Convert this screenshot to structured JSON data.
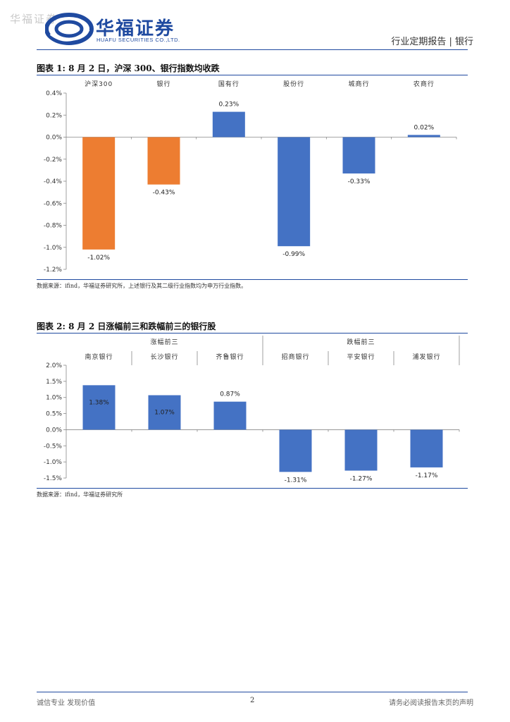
{
  "header": {
    "watermark": "华福证券",
    "brand_cn": "华福证券",
    "brand_en": "HUAFU SECURITIES CO.,LTD.",
    "report_type": "行业定期报告 | 银行"
  },
  "figures": [
    {
      "title": "图表 1:  8 月 2 日，沪深 300、银行指数均收跌",
      "source": "数据来源：ifind，华福证券研究所，上述银行及其二级行业指数均为申万行业指数。"
    },
    {
      "title": "图表 2:  8 月 2 日涨幅前三和跌幅前三的银行股",
      "source": "数据来源：ifind，华福证券研究所",
      "group_labels": [
        "涨幅前三",
        "跌幅前三"
      ]
    }
  ],
  "chart_data": [
    {
      "type": "bar",
      "categories": [
        "沪深300",
        "银行",
        "国有行",
        "股份行",
        "城商行",
        "农商行"
      ],
      "values": [
        -1.02,
        -0.43,
        0.23,
        -0.99,
        -0.33,
        0.02
      ],
      "data_labels": [
        "-1.02%",
        "-0.43%",
        "0.23%",
        "-0.99%",
        "-0.33%",
        "0.02%"
      ],
      "colors": [
        "#ED7D31",
        "#ED7D31",
        "#4472C4",
        "#4472C4",
        "#4472C4",
        "#4472C4"
      ],
      "ylim": [
        -1.2,
        0.4
      ],
      "yticks": [
        0.4,
        0.2,
        0.0,
        -0.2,
        -0.4,
        -0.6,
        -0.8,
        -1.0,
        -1.2
      ],
      "ytick_labels": [
        "0.4%",
        "0.2%",
        "0.0%",
        "-0.2%",
        "-0.4%",
        "-0.6%",
        "-0.8%",
        "-1.0%",
        "-1.2%"
      ],
      "category_axis": "top",
      "grid": false
    },
    {
      "type": "bar",
      "categories": [
        "南京银行",
        "长沙银行",
        "齐鲁银行",
        "招商银行",
        "平安银行",
        "浦发银行"
      ],
      "values": [
        1.38,
        1.07,
        0.87,
        -1.31,
        -1.27,
        -1.17
      ],
      "data_labels": [
        "1.38%",
        "1.07%",
        "0.87%",
        "-1.31%",
        "-1.27%",
        "-1.17%"
      ],
      "colors": [
        "#4472C4",
        "#4472C4",
        "#4472C4",
        "#4472C4",
        "#4472C4",
        "#4472C4"
      ],
      "ylim": [
        -1.5,
        2.0
      ],
      "yticks": [
        2.0,
        1.5,
        1.0,
        0.5,
        0.0,
        -0.5,
        -1.0,
        -1.5
      ],
      "ytick_labels": [
        "2.0%",
        "1.5%",
        "1.0%",
        "0.5%",
        "0.0%",
        "-0.5%",
        "-1.0%",
        "-1.5%"
      ],
      "category_axis": "top",
      "grid": false
    }
  ],
  "footer": {
    "left": "诚信专业  发现价值",
    "page": "2",
    "right": "请务必阅读报告末页的声明"
  }
}
